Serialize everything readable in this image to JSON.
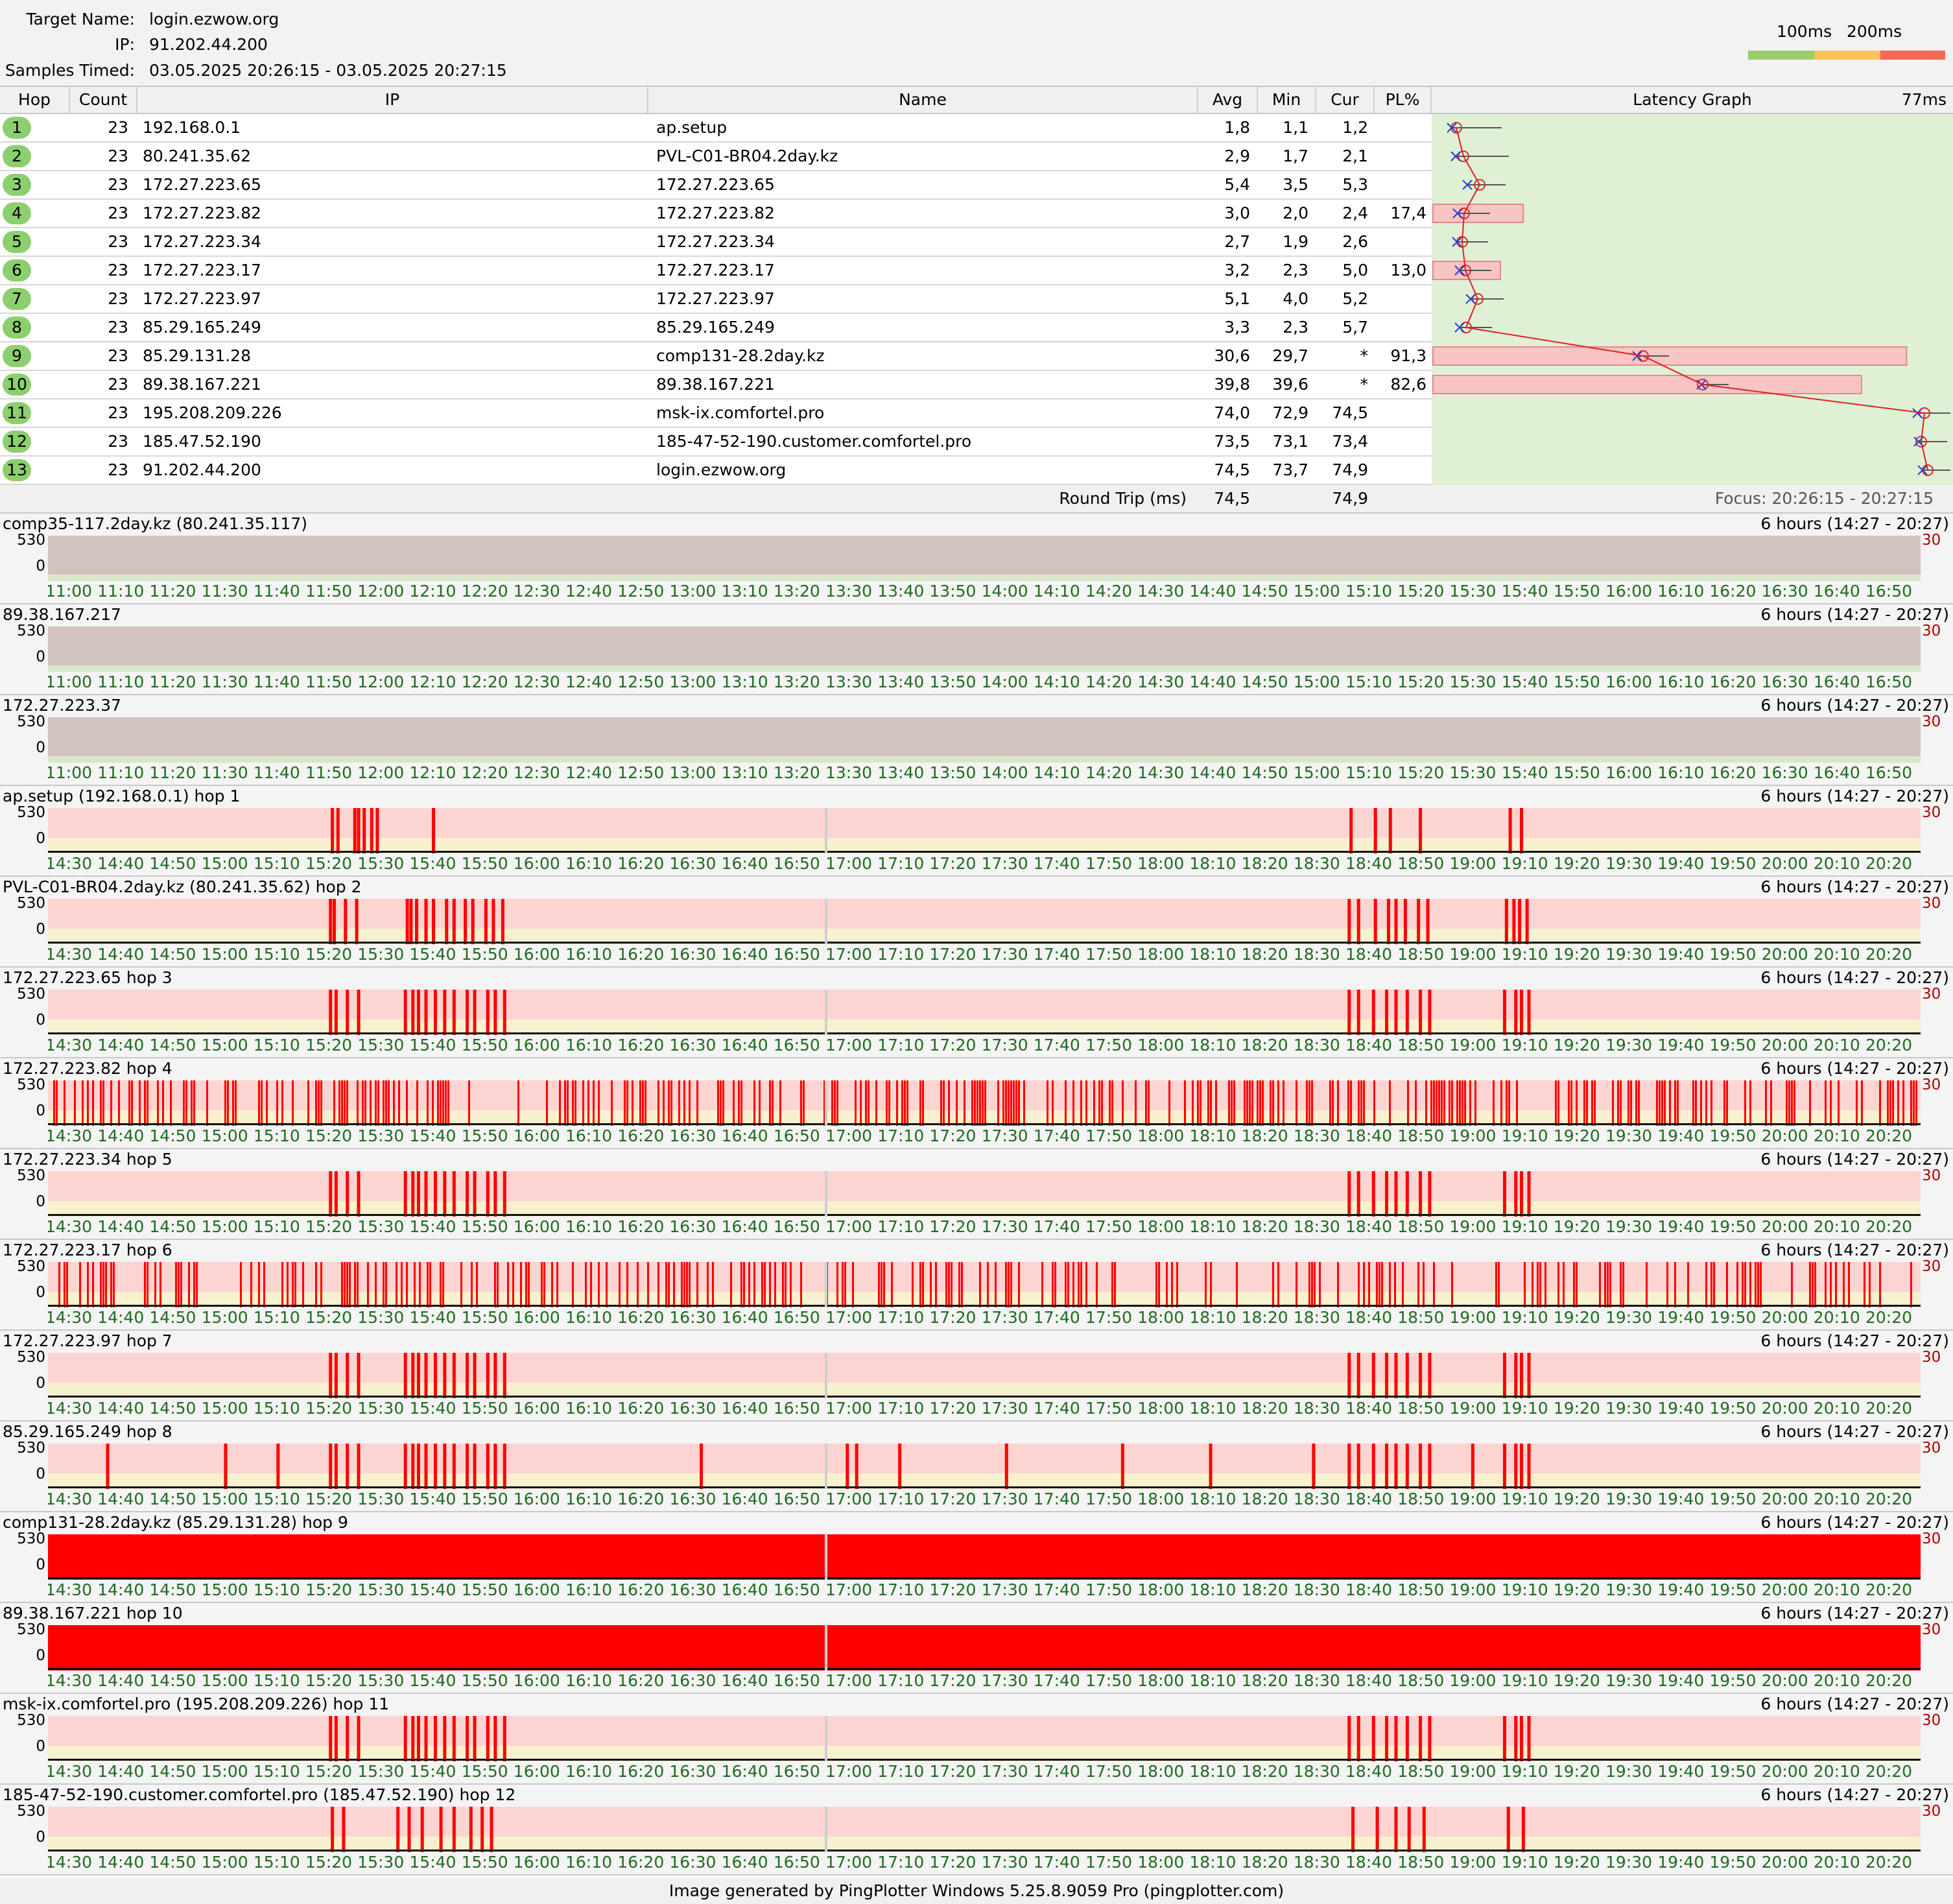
{
  "header": {
    "target_label": "Target Name:",
    "target_value": "login.ezwow.org",
    "ip_label": "IP:",
    "ip_value": "91.202.44.200",
    "samples_label": "Samples Timed:",
    "samples_value": "03.05.2025 20:26:15 - 03.05.2025 20:27:15",
    "legend": {
      "label_100": "100ms",
      "label_200": "200ms",
      "colors": [
        "#9acd6b",
        "#f9c35a",
        "#f26a5a"
      ]
    }
  },
  "table": {
    "columns": [
      "Hop",
      "Count",
      "IP",
      "Name",
      "Avg",
      "Min",
      "Cur",
      "PL%",
      "Latency Graph"
    ],
    "graph_scale": "77ms",
    "hops": [
      {
        "hop": "1",
        "count": "23",
        "ip": "192.168.0.1",
        "name": "ap.setup",
        "avg": "1,8",
        "min": "1,1",
        "cur": "1,2",
        "pl": ""
      },
      {
        "hop": "2",
        "count": "23",
        "ip": "80.241.35.62",
        "name": "PVL-C01-BR04.2day.kz",
        "avg": "2,9",
        "min": "1,7",
        "cur": "2,1",
        "pl": ""
      },
      {
        "hop": "3",
        "count": "23",
        "ip": "172.27.223.65",
        "name": "172.27.223.65",
        "avg": "5,4",
        "min": "3,5",
        "cur": "5,3",
        "pl": ""
      },
      {
        "hop": "4",
        "count": "23",
        "ip": "172.27.223.82",
        "name": "172.27.223.82",
        "avg": "3,0",
        "min": "2,0",
        "cur": "2,4",
        "pl": "17,4"
      },
      {
        "hop": "5",
        "count": "23",
        "ip": "172.27.223.34",
        "name": "172.27.223.34",
        "avg": "2,7",
        "min": "1,9",
        "cur": "2,6",
        "pl": ""
      },
      {
        "hop": "6",
        "count": "23",
        "ip": "172.27.223.17",
        "name": "172.27.223.17",
        "avg": "3,2",
        "min": "2,3",
        "cur": "5,0",
        "pl": "13,0"
      },
      {
        "hop": "7",
        "count": "23",
        "ip": "172.27.223.97",
        "name": "172.27.223.97",
        "avg": "5,1",
        "min": "4,0",
        "cur": "5,2",
        "pl": ""
      },
      {
        "hop": "8",
        "count": "23",
        "ip": "85.29.165.249",
        "name": "85.29.165.249",
        "avg": "3,3",
        "min": "2,3",
        "cur": "5,7",
        "pl": ""
      },
      {
        "hop": "9",
        "count": "23",
        "ip": "85.29.131.28",
        "name": "comp131-28.2day.kz",
        "avg": "30,6",
        "min": "29,7",
        "cur": "*",
        "pl": "91,3"
      },
      {
        "hop": "10",
        "count": "23",
        "ip": "89.38.167.221",
        "name": "89.38.167.221",
        "avg": "39,8",
        "min": "39,6",
        "cur": "*",
        "pl": "82,6"
      },
      {
        "hop": "11",
        "count": "23",
        "ip": "195.208.209.226",
        "name": "msk-ix.comfortel.pro",
        "avg": "74,0",
        "min": "72,9",
        "cur": "74,5",
        "pl": ""
      },
      {
        "hop": "12",
        "count": "23",
        "ip": "185.47.52.190",
        "name": "185-47-52-190.customer.comfortel.pro",
        "avg": "73,5",
        "min": "73,1",
        "cur": "73,4",
        "pl": ""
      },
      {
        "hop": "13",
        "count": "23",
        "ip": "91.202.44.200",
        "name": "login.ezwow.org",
        "avg": "74,5",
        "min": "73,7",
        "cur": "74,9",
        "pl": ""
      }
    ],
    "round_trip": {
      "label": "Round Trip (ms)",
      "avg": "74,5",
      "cur": "74,9",
      "focus": "Focus: 20:26:15 - 20:27:15"
    }
  },
  "timeline_axes": {
    "old": [
      "11:00",
      "11:10",
      "11:20",
      "11:30",
      "11:40",
      "11:50",
      "12:00",
      "12:10",
      "12:20",
      "12:30",
      "12:40",
      "12:50",
      "13:00",
      "13:10",
      "13:20",
      "13:30",
      "13:40",
      "13:50",
      "14:00",
      "14:10",
      "14:20",
      "14:30",
      "14:40",
      "14:50",
      "15:00",
      "15:10",
      "15:20",
      "15:30",
      "15:40",
      "15:50",
      "16:00",
      "16:10",
      "16:20",
      "16:30",
      "16:40",
      "16:50"
    ],
    "recent": [
      "14:30",
      "14:40",
      "14:50",
      "15:00",
      "15:10",
      "15:20",
      "15:30",
      "15:40",
      "15:50",
      "16:00",
      "16:10",
      "16:20",
      "16:30",
      "16:40",
      "16:50",
      "17:00",
      "17:10",
      "17:20",
      "17:30",
      "17:40",
      "17:50",
      "18:00",
      "18:10",
      "18:20",
      "18:30",
      "18:40",
      "18:50",
      "19:00",
      "19:10",
      "19:20",
      "19:30",
      "19:40",
      "19:50",
      "20:00",
      "20:10",
      "20:20"
    ]
  },
  "timelines": [
    {
      "title": "comp35-117.2day.kz (80.241.35.117)",
      "range": "6 hours (14:27 - 20:27)",
      "y_max": "530",
      "y_min": "0",
      "right_label": "30",
      "axis": "old",
      "style": "nodata",
      "spikes": []
    },
    {
      "title": "89.38.167.217",
      "range": "6 hours (14:27 - 20:27)",
      "y_max": "530",
      "y_min": "0",
      "right_label": "30",
      "axis": "old",
      "style": "nodata",
      "spikes": []
    },
    {
      "title": "172.27.223.37",
      "range": "6 hours (14:27 - 20:27)",
      "y_max": "530",
      "y_min": "0",
      "right_label": "30",
      "axis": "old",
      "style": "nodata",
      "spikes": []
    },
    {
      "title": "ap.setup (192.168.0.1) hop 1",
      "range": "6 hours (14:27 - 20:27)",
      "y_max": "530",
      "y_min": "0",
      "right_label": "30",
      "axis": "recent",
      "style": "sparse",
      "spikes": [
        15.1,
        15.4,
        16.3,
        16.5,
        16.8,
        17.2,
        17.5,
        20.5,
        69.5,
        70.8,
        71.6,
        73.2,
        78.0,
        78.6
      ]
    },
    {
      "title": "PVL-C01-BR04.2day.kz (80.241.35.62) hop 2",
      "range": "6 hours (14:27 - 20:27)",
      "y_max": "530",
      "y_min": "0",
      "right_label": "30",
      "axis": "recent",
      "style": "sparse",
      "spikes": [
        15.0,
        15.2,
        15.8,
        16.4,
        19.1,
        19.3,
        19.6,
        20.1,
        20.5,
        21.2,
        21.6,
        22.2,
        22.6,
        23.3,
        23.7,
        24.2,
        69.4,
        69.9,
        70.8,
        71.5,
        71.9,
        72.4,
        73.1,
        73.6,
        77.8,
        78.2,
        78.5,
        78.9
      ]
    },
    {
      "title": "172.27.223.65 hop 3",
      "range": "6 hours (14:27 - 20:27)",
      "y_max": "530",
      "y_min": "0",
      "right_label": "30",
      "axis": "recent",
      "style": "sparse",
      "spikes": [
        15.0,
        15.3,
        15.9,
        16.5,
        19.0,
        19.4,
        19.7,
        20.1,
        20.6,
        21.1,
        21.6,
        22.3,
        22.7,
        23.4,
        23.8,
        24.3,
        69.4,
        69.9,
        70.7,
        71.4,
        71.9,
        72.5,
        73.2,
        73.7,
        77.7,
        78.3,
        78.6,
        79.0
      ]
    },
    {
      "title": "172.27.223.82 hop 4",
      "range": "6 hours (14:27 - 20:27)",
      "y_max": "530",
      "y_min": "0",
      "right_label": "30",
      "axis": "recent",
      "style": "dense",
      "seed": 7,
      "density": 0.34,
      "spikes": []
    },
    {
      "title": "172.27.223.34 hop 5",
      "range": "6 hours (14:27 - 20:27)",
      "y_max": "530",
      "y_min": "0",
      "right_label": "30",
      "axis": "recent",
      "style": "sparse",
      "spikes": [
        15.0,
        15.3,
        15.9,
        16.5,
        19.0,
        19.4,
        19.7,
        20.1,
        20.6,
        21.1,
        21.6,
        22.3,
        22.7,
        23.4,
        23.8,
        24.3,
        69.4,
        69.9,
        70.7,
        71.4,
        71.9,
        72.5,
        73.2,
        73.7,
        77.7,
        78.3,
        78.6,
        79.0
      ]
    },
    {
      "title": "172.27.223.17 hop 6",
      "range": "6 hours (14:27 - 20:27)",
      "y_max": "530",
      "y_min": "0",
      "right_label": "30",
      "axis": "recent",
      "style": "dense",
      "seed": 13,
      "density": 0.3,
      "spikes": []
    },
    {
      "title": "172.27.223.97 hop 7",
      "range": "6 hours (14:27 - 20:27)",
      "y_max": "530",
      "y_min": "0",
      "right_label": "30",
      "axis": "recent",
      "style": "sparse",
      "spikes": [
        15.0,
        15.3,
        15.9,
        16.5,
        19.0,
        19.4,
        19.7,
        20.1,
        20.6,
        21.1,
        21.6,
        22.3,
        22.7,
        23.4,
        23.8,
        24.3,
        69.4,
        69.9,
        70.7,
        71.4,
        71.9,
        72.5,
        73.2,
        73.7,
        77.7,
        78.3,
        78.6,
        79.0
      ]
    },
    {
      "title": "85.29.165.249 hop 8",
      "range": "6 hours (14:27 - 20:27)",
      "y_max": "530",
      "y_min": "0",
      "right_label": "30",
      "axis": "recent",
      "style": "sparse",
      "spikes": [
        3.1,
        9.4,
        12.2,
        15.0,
        15.3,
        15.9,
        16.5,
        19.0,
        19.4,
        19.7,
        20.1,
        20.6,
        21.1,
        21.6,
        22.3,
        22.7,
        23.4,
        23.8,
        24.3,
        34.8,
        42.6,
        43.1,
        45.4,
        51.1,
        57.3,
        62.0,
        67.5,
        69.4,
        69.9,
        70.7,
        71.4,
        71.9,
        72.5,
        73.2,
        73.7,
        76.0,
        77.7,
        78.3,
        78.6,
        79.0
      ]
    },
    {
      "title": "comp131-28.2day.kz (85.29.131.28) hop 9",
      "range": "6 hours (14:27 - 20:27)",
      "y_max": "530",
      "y_min": "0",
      "right_label": "30",
      "axis": "recent",
      "style": "solid",
      "spikes": []
    },
    {
      "title": "89.38.167.221 hop 10",
      "range": "6 hours (14:27 - 20:27)",
      "y_max": "530",
      "y_min": "0",
      "right_label": "30",
      "axis": "recent",
      "style": "solid",
      "spikes": []
    },
    {
      "title": "msk-ix.comfortel.pro (195.208.209.226) hop 11",
      "range": "6 hours (14:27 - 20:27)",
      "y_max": "530",
      "y_min": "0",
      "right_label": "30",
      "axis": "recent",
      "style": "sparse",
      "spikes": [
        15.0,
        15.3,
        15.9,
        16.5,
        19.0,
        19.4,
        19.7,
        20.1,
        20.6,
        21.1,
        21.6,
        22.3,
        22.7,
        23.4,
        23.8,
        24.3,
        69.4,
        69.9,
        70.7,
        71.4,
        71.9,
        72.5,
        73.2,
        73.7,
        77.7,
        78.3,
        78.6,
        79.0
      ]
    },
    {
      "title": "185-47-52-190.customer.comfortel.pro (185.47.52.190) hop 12",
      "range": "6 hours (14:27 - 20:27)",
      "y_max": "530",
      "y_min": "0",
      "right_label": "30",
      "axis": "recent",
      "style": "sparse",
      "spikes": [
        15.1,
        15.7,
        18.6,
        19.2,
        19.9,
        20.9,
        21.6,
        22.5,
        23.1,
        23.6,
        69.6,
        70.9,
        71.9,
        72.6,
        73.4,
        77.9,
        78.7
      ]
    }
  ],
  "footer": "Image generated by PingPlotter Windows 5.25.8.9059 Pro (pingplotter.com)"
}
